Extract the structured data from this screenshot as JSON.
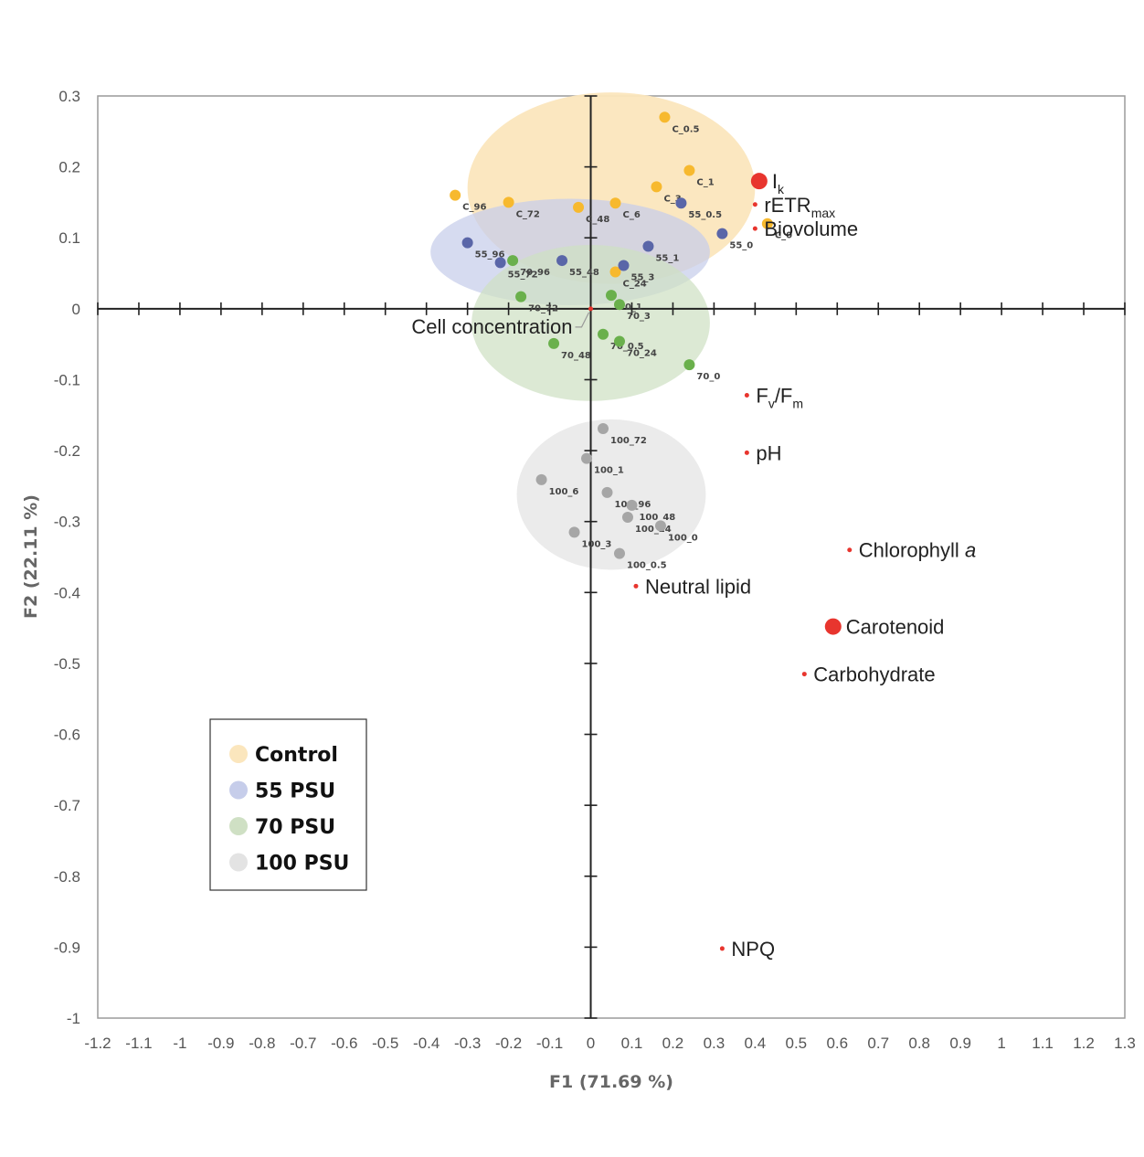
{
  "chart_data": {
    "type": "scatter",
    "title": "",
    "xlabel": "F1 (71.69 %)",
    "ylabel": "F2 (22.11 %)",
    "xlim": [
      -1.2,
      1.3
    ],
    "ylim": [
      -1,
      0.3
    ],
    "x_ticks": [
      "-1.2",
      "-1.1",
      "-1",
      "-0.9",
      "-0.8",
      "-0.7",
      "-0.6",
      "-0.5",
      "-0.4",
      "-0.3",
      "-0.2",
      "-0.1",
      "0",
      "0.1",
      "0.2",
      "0.3",
      "0.4",
      "0.5",
      "0.6",
      "0.7",
      "0.8",
      "0.9",
      "1",
      "1.1",
      "1.2",
      "1.3"
    ],
    "y_ticks": [
      "0.3",
      "0.2",
      "0.1",
      "0",
      "-0.1",
      "-0.2",
      "-0.3",
      "-0.4",
      "-0.5",
      "-0.6",
      "-0.7",
      "-0.8",
      "-0.9",
      "-1"
    ],
    "grid": false,
    "legend_position": "bottom-left",
    "legend": [
      {
        "name": "Control",
        "color": "#fbe6bd"
      },
      {
        "name": "55 PSU",
        "color": "#c6cdea"
      },
      {
        "name": "70 PSU",
        "color": "#cfe0c4"
      },
      {
        "name": "100 PSU",
        "color": "#e3e3e3"
      }
    ],
    "groups": [
      {
        "name": "Control",
        "ellipse": {
          "cx": 0.05,
          "cy": 0.17,
          "rx": 0.35,
          "ry": 0.135,
          "color": "#fbe6bd"
        },
        "point_color": "#f7b92e",
        "points": [
          {
            "label": "C_0.5",
            "x": 0.18,
            "y": 0.27
          },
          {
            "label": "C_1",
            "x": 0.24,
            "y": 0.195
          },
          {
            "label": "C_3",
            "x": 0.16,
            "y": 0.172
          },
          {
            "label": "C_96",
            "x": -0.33,
            "y": 0.16
          },
          {
            "label": "C_72",
            "x": -0.2,
            "y": 0.15
          },
          {
            "label": "C_48",
            "x": -0.03,
            "y": 0.143
          },
          {
            "label": "C_6",
            "x": 0.06,
            "y": 0.149
          },
          {
            "label": "C_0",
            "x": 0.43,
            "y": 0.12
          },
          {
            "label": "C_24",
            "x": 0.06,
            "y": 0.052
          }
        ]
      },
      {
        "name": "55 PSU",
        "ellipse": {
          "cx": -0.05,
          "cy": 0.08,
          "rx": 0.34,
          "ry": 0.075,
          "color": "#c6cdea"
        },
        "point_color": "#5a66a8",
        "points": [
          {
            "label": "55_96",
            "x": -0.3,
            "y": 0.093
          },
          {
            "label": "55_72",
            "x": -0.22,
            "y": 0.065
          },
          {
            "label": "55_48",
            "x": -0.07,
            "y": 0.068
          },
          {
            "label": "55_0.5",
            "x": 0.22,
            "y": 0.149
          },
          {
            "label": "55_0",
            "x": 0.32,
            "y": 0.106
          },
          {
            "label": "55_1",
            "x": 0.14,
            "y": 0.088
          },
          {
            "label": "55_3",
            "x": 0.08,
            "y": 0.061
          }
        ]
      },
      {
        "name": "70 PSU",
        "ellipse": {
          "cx": 0.0,
          "cy": -0.02,
          "rx": 0.29,
          "ry": 0.11,
          "color": "#cfe0c4"
        },
        "point_color": "#6ab04c",
        "points": [
          {
            "label": "70_96",
            "x": -0.19,
            "y": 0.068
          },
          {
            "label": "70_72",
            "x": -0.17,
            "y": 0.017
          },
          {
            "label": "70_1",
            "x": 0.05,
            "y": 0.019
          },
          {
            "label": "70_3",
            "x": 0.07,
            "y": 0.006
          },
          {
            "label": "70_0.5",
            "x": 0.03,
            "y": -0.036
          },
          {
            "label": "70_24",
            "x": 0.07,
            "y": -0.046
          },
          {
            "label": "70_48",
            "x": -0.09,
            "y": -0.049
          },
          {
            "label": "70_0",
            "x": 0.24,
            "y": -0.079
          }
        ]
      },
      {
        "name": "100 PSU",
        "ellipse": {
          "cx": 0.05,
          "cy": -0.262,
          "rx": 0.23,
          "ry": 0.106,
          "color": "#e3e3e3"
        },
        "point_color": "#a6a6a6",
        "points": [
          {
            "label": "100_72",
            "x": 0.03,
            "y": -0.169
          },
          {
            "label": "100_1",
            "x": -0.01,
            "y": -0.211
          },
          {
            "label": "100_6",
            "x": -0.12,
            "y": -0.241
          },
          {
            "label": "100_96",
            "x": 0.04,
            "y": -0.259
          },
          {
            "label": "100_48",
            "x": 0.1,
            "y": -0.277
          },
          {
            "label": "100_24",
            "x": 0.09,
            "y": -0.294
          },
          {
            "label": "100_0",
            "x": 0.17,
            "y": -0.306
          },
          {
            "label": "100_3",
            "x": -0.04,
            "y": -0.315
          },
          {
            "label": "100_0.5",
            "x": 0.07,
            "y": -0.345
          }
        ]
      }
    ],
    "variables": [
      {
        "label": "I",
        "sub": "k",
        "x": 0.41,
        "y": 0.18,
        "size": "large"
      },
      {
        "label": "rETR",
        "sub": "max",
        "x": 0.4,
        "y": 0.147,
        "size": "small"
      },
      {
        "label": "Biovolume",
        "sub": "",
        "x": 0.4,
        "y": 0.113,
        "size": "small"
      },
      {
        "label": "Cell concentration",
        "sub": "",
        "x": 0.0,
        "y": 0.0,
        "size": "small"
      },
      {
        "label": "F",
        "sub": "v",
        "label2": "/F",
        "sub2": "m",
        "x": 0.38,
        "y": -0.122,
        "size": "small"
      },
      {
        "label": "pH",
        "sub": "",
        "x": 0.38,
        "y": -0.203,
        "size": "small"
      },
      {
        "label": "Chlorophyll ",
        "italic": "a",
        "sub": "",
        "x": 0.63,
        "y": -0.34,
        "size": "small"
      },
      {
        "label": "Neutral lipid",
        "sub": "",
        "x": 0.11,
        "y": -0.391,
        "size": "small"
      },
      {
        "label": "Carotenoid",
        "sub": "",
        "x": 0.59,
        "y": -0.448,
        "size": "large"
      },
      {
        "label": "Carbohydrate",
        "sub": "",
        "x": 0.52,
        "y": -0.515,
        "size": "small"
      },
      {
        "label": "NPQ",
        "sub": "",
        "x": 0.32,
        "y": -0.902,
        "size": "small"
      }
    ],
    "variable_color": "#e8352e"
  }
}
